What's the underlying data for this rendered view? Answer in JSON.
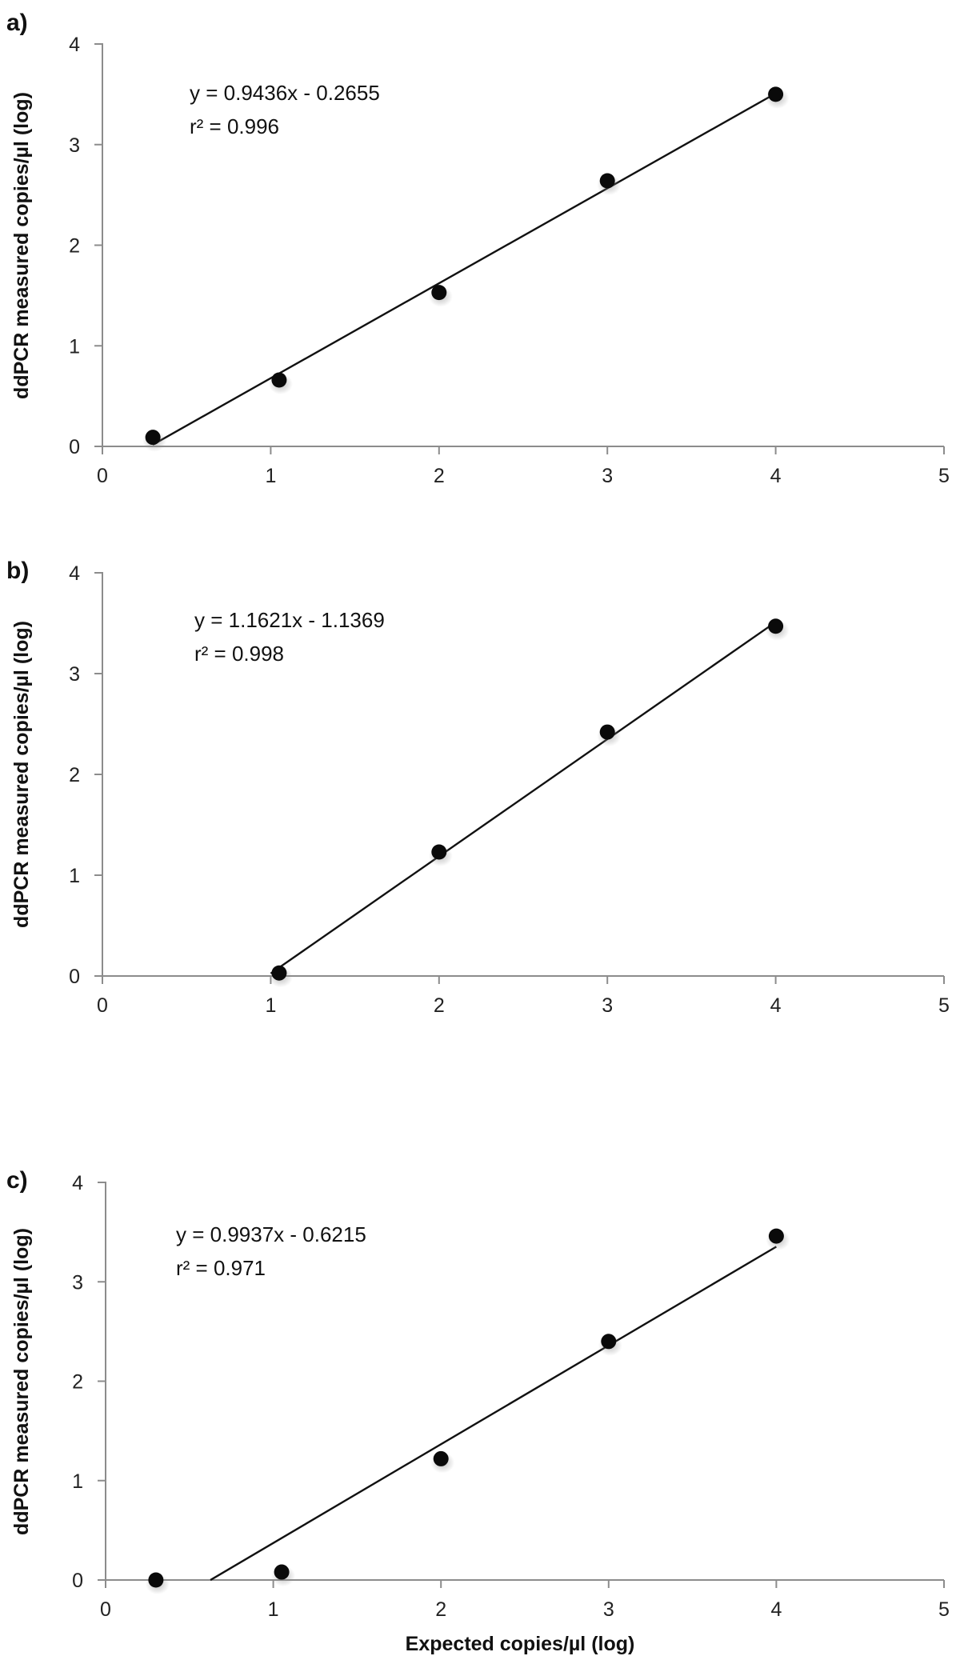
{
  "chart_data": [
    {
      "type": "scatter",
      "panel_label": "a)",
      "xlabel": "",
      "ylabel": "ddPCR measured copies/µl (log)",
      "xlim": [
        0,
        5
      ],
      "ylim": [
        0,
        4
      ],
      "xticks": [
        "0",
        "1",
        "2",
        "3",
        "4",
        "5"
      ],
      "yticks": [
        "0",
        "1",
        "2",
        "3",
        "4"
      ],
      "points": [
        {
          "x": 0.3,
          "y": 0.09
        },
        {
          "x": 1.05,
          "y": 0.66
        },
        {
          "x": 2.0,
          "y": 1.53
        },
        {
          "x": 3.0,
          "y": 2.64
        },
        {
          "x": 4.0,
          "y": 3.5
        }
      ],
      "trendline": {
        "slope": 0.9436,
        "intercept": -0.2655,
        "x_start": 0.3,
        "x_end": 4.0
      },
      "equation": "y = 0.9436x - 0.2655",
      "r_squared": "r² = 0.996",
      "grid": false,
      "legend": "none"
    },
    {
      "type": "scatter",
      "panel_label": "b)",
      "xlabel": "",
      "ylabel": "ddPCR measured copies/µl (log)",
      "xlim": [
        0,
        5
      ],
      "ylim": [
        0,
        4
      ],
      "xticks": [
        "0",
        "1",
        "2",
        "3",
        "4",
        "5"
      ],
      "yticks": [
        "0",
        "1",
        "2",
        "3",
        "4"
      ],
      "points": [
        {
          "x": 1.05,
          "y": 0.03
        },
        {
          "x": 2.0,
          "y": 1.23
        },
        {
          "x": 3.0,
          "y": 2.42
        },
        {
          "x": 4.0,
          "y": 3.47
        }
      ],
      "trendline": {
        "slope": 1.1621,
        "intercept": -1.1369,
        "x_start": 1.0,
        "x_end": 4.0
      },
      "equation": "y = 1.1621x - 1.1369",
      "r_squared": "r² = 0.998",
      "grid": false,
      "legend": "none"
    },
    {
      "type": "scatter",
      "panel_label": "c)",
      "xlabel": "Expected copies/µl (log)",
      "ylabel": "ddPCR measured copies/µl (log)",
      "xlim": [
        0,
        5
      ],
      "ylim": [
        0,
        4
      ],
      "xticks": [
        "0",
        "1",
        "2",
        "3",
        "4",
        "5"
      ],
      "yticks": [
        "0",
        "1",
        "2",
        "3",
        "4"
      ],
      "points": [
        {
          "x": 0.3,
          "y": 0.0
        },
        {
          "x": 1.05,
          "y": 0.08
        },
        {
          "x": 2.0,
          "y": 1.22
        },
        {
          "x": 3.0,
          "y": 2.4
        },
        {
          "x": 4.0,
          "y": 3.46
        }
      ],
      "trendline": {
        "slope": 0.9937,
        "intercept": -0.6215,
        "x_start": 0.625,
        "x_end": 4.0
      },
      "equation": "y = 0.9937x - 0.6215",
      "r_squared": "r² = 0.971",
      "grid": false,
      "legend": "none"
    }
  ]
}
